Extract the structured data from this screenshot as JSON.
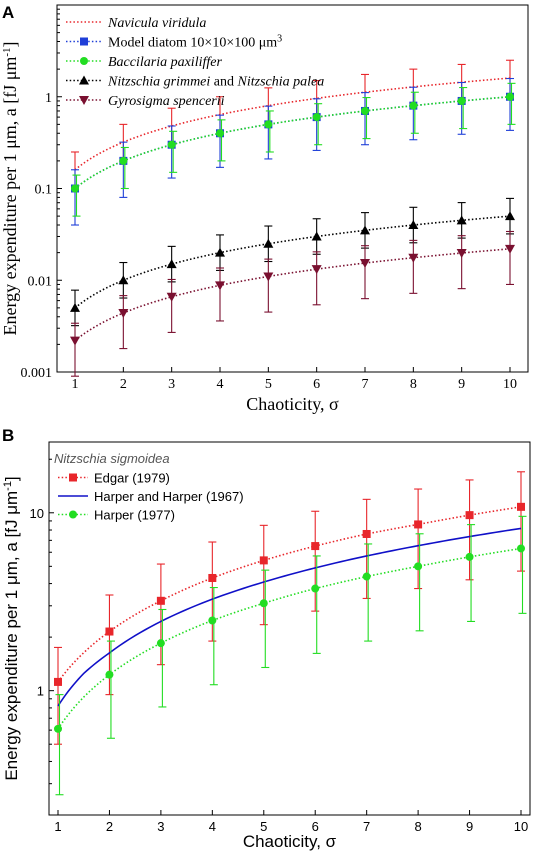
{
  "chart_data": [
    {
      "panel_label": "A",
      "type": "scatter",
      "scale_y": "log",
      "xlabel": "Chaoticity, σ",
      "ylabel": "Energy expenditure per 1 μm, a [fJ μm⁻¹]",
      "xlim": [
        1,
        10
      ],
      "ylim": [
        0.001,
        10
      ],
      "x_ticks": [
        1,
        2,
        3,
        4,
        5,
        6,
        7,
        8,
        9,
        10
      ],
      "y_ticks": [
        0.001,
        0.01,
        0.1,
        1
      ],
      "y_tick_labels": [
        "0.001",
        "0.01",
        "0.1",
        "1"
      ],
      "legend_position": "top-left",
      "series": [
        {
          "name": "Navicula viridula",
          "style": "italic",
          "color": "#e8262b",
          "marker": "none",
          "line": "dotted",
          "x": [
            1,
            2,
            3,
            4,
            5,
            6,
            7,
            8,
            9,
            10
          ],
          "y": [
            0.16,
            0.32,
            0.48,
            0.64,
            0.8,
            0.96,
            1.12,
            1.28,
            1.44,
            1.6
          ],
          "err_lo": [
            0.1,
            0.2,
            0.3,
            0.4,
            0.5,
            0.6,
            0.7,
            0.8,
            0.9,
            1.0
          ],
          "err_hi": [
            0.25,
            0.5,
            0.75,
            1.0,
            1.25,
            1.5,
            1.75,
            2.0,
            2.25,
            2.5
          ]
        },
        {
          "name": "Model diatom 10×10×100 μm³",
          "color": "#1f3fd8",
          "marker": "square",
          "line": "dotted",
          "x": [
            1,
            2,
            3,
            4,
            5,
            6,
            7,
            8,
            9,
            10
          ],
          "y": [
            0.1,
            0.2,
            0.3,
            0.4,
            0.5,
            0.6,
            0.7,
            0.8,
            0.9,
            1.0
          ],
          "err_lo": [
            0.04,
            0.08,
            0.13,
            0.17,
            0.21,
            0.26,
            0.3,
            0.34,
            0.39,
            0.43
          ],
          "err_hi": [
            0.16,
            0.32,
            0.48,
            0.63,
            0.79,
            0.95,
            1.11,
            1.27,
            1.43,
            1.58
          ]
        },
        {
          "name": "Baccilaria paxiliffer",
          "style": "italic",
          "color": "#22dd22",
          "marker": "circle",
          "line": "dotted",
          "x": [
            1,
            2,
            3,
            4,
            5,
            6,
            7,
            8,
            9,
            10
          ],
          "y": [
            0.1,
            0.2,
            0.3,
            0.4,
            0.5,
            0.6,
            0.7,
            0.8,
            0.9,
            1.0
          ],
          "err_lo": [
            0.05,
            0.1,
            0.15,
            0.2,
            0.25,
            0.3,
            0.35,
            0.4,
            0.45,
            0.5
          ],
          "err_hi": [
            0.14,
            0.28,
            0.42,
            0.56,
            0.7,
            0.84,
            0.98,
            1.12,
            1.26,
            1.4
          ]
        },
        {
          "name_parts": [
            {
              "text": "Nitzschia grimmei",
              "italic": true
            },
            {
              "text": " and ",
              "italic": false
            },
            {
              "text": "Nitzschia palea",
              "italic": true
            }
          ],
          "color": "#000000",
          "marker": "triangle-up",
          "line": "dotted",
          "x": [
            1,
            2,
            3,
            4,
            5,
            6,
            7,
            8,
            9,
            10
          ],
          "y": [
            0.005,
            0.01,
            0.015,
            0.02,
            0.025,
            0.03,
            0.035,
            0.04,
            0.045,
            0.05
          ],
          "err_lo": [
            0.0032,
            0.0064,
            0.0096,
            0.0128,
            0.016,
            0.0192,
            0.0224,
            0.0256,
            0.0288,
            0.032
          ],
          "err_hi": [
            0.0078,
            0.0156,
            0.0234,
            0.0312,
            0.039,
            0.0468,
            0.0546,
            0.0624,
            0.0702,
            0.078
          ]
        },
        {
          "name": "Gyrosigma spencerii",
          "style": "italic",
          "color": "#7a1030",
          "marker": "triangle-down",
          "line": "dotted",
          "x": [
            1,
            2,
            3,
            4,
            5,
            6,
            7,
            8,
            9,
            10
          ],
          "y": [
            0.0022,
            0.0044,
            0.0066,
            0.0088,
            0.011,
            0.0132,
            0.0154,
            0.0176,
            0.0198,
            0.022
          ],
          "err_lo": [
            0.0009,
            0.0018,
            0.0027,
            0.0036,
            0.0045,
            0.0054,
            0.0063,
            0.0072,
            0.0081,
            0.009
          ],
          "err_hi": [
            0.0034,
            0.0068,
            0.0102,
            0.0136,
            0.017,
            0.0204,
            0.0238,
            0.0272,
            0.0306,
            0.034
          ]
        }
      ]
    },
    {
      "panel_label": "B",
      "type": "scatter",
      "scale_y": "log",
      "xlabel": "Chaoticity, σ",
      "ylabel": "Energy expenditure per 1 μm, a [fJ μm⁻¹]",
      "xlim": [
        1,
        10
      ],
      "ylim": [
        0.2,
        25
      ],
      "x_ticks": [
        1,
        2,
        3,
        4,
        5,
        6,
        7,
        8,
        9,
        10
      ],
      "y_ticks": [
        1,
        10
      ],
      "y_tick_labels": [
        "1",
        "10"
      ],
      "legend_title": "Nitzschia sigmoidea",
      "legend_position": "top-left",
      "series": [
        {
          "name": "Edgar (1979)",
          "color": "#e8262b",
          "marker": "square",
          "line": "dotted",
          "x": [
            1,
            2,
            3,
            4,
            5,
            6,
            7,
            8,
            9,
            10
          ],
          "y": [
            1.12,
            2.15,
            3.2,
            4.3,
            5.4,
            6.5,
            7.6,
            8.6,
            9.7,
            10.8
          ],
          "err_lo": [
            0.5,
            0.95,
            1.4,
            1.9,
            2.35,
            2.8,
            3.3,
            3.75,
            4.2,
            4.7
          ],
          "err_hi": [
            1.75,
            3.45,
            5.15,
            6.85,
            8.5,
            10.2,
            11.9,
            13.6,
            15.3,
            17.0
          ]
        },
        {
          "name": "Harper and Harper (1967)",
          "color": "#1010c8",
          "marker": "none",
          "line": "solid",
          "x": [
            1,
            1.5,
            2,
            3,
            4,
            5,
            6,
            7,
            8,
            9,
            10
          ],
          "y": [
            0.82,
            1.25,
            1.63,
            2.45,
            3.27,
            4.08,
            4.9,
            5.72,
            6.53,
            7.35,
            8.17
          ]
        },
        {
          "name": "Harper (1977)",
          "color": "#22dd22",
          "marker": "circle",
          "line": "dotted",
          "x": [
            1,
            2,
            3,
            4,
            5,
            6,
            7,
            8,
            9,
            10
          ],
          "y": [
            0.61,
            1.23,
            1.85,
            2.48,
            3.1,
            3.75,
            4.38,
            5.0,
            5.65,
            6.3
          ],
          "err_lo": [
            0.26,
            0.54,
            0.81,
            1.08,
            1.35,
            1.62,
            1.9,
            2.17,
            2.45,
            2.72
          ],
          "err_hi": [
            0.95,
            1.9,
            2.86,
            3.8,
            4.76,
            5.72,
            6.68,
            7.62,
            8.58,
            9.55
          ]
        }
      ]
    }
  ]
}
